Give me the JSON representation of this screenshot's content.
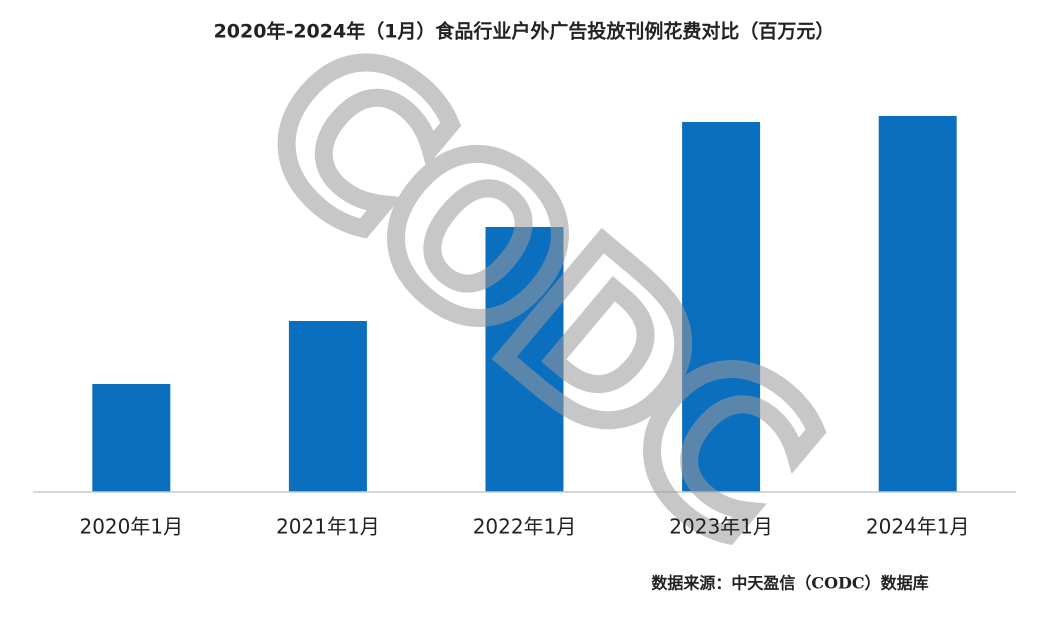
{
  "chart_data": {
    "type": "bar",
    "title": "2020年-2024年（1月）食品行业户外广告投放刊例花费对比（百万元）",
    "categories": [
      "2020年1月",
      "2021年1月",
      "2022年1月",
      "2023年1月",
      "2024年1月"
    ],
    "values": [
      108,
      171,
      265,
      370,
      376
    ],
    "color": "#0b6fbf",
    "watermark": "CODC",
    "source": "数据来源：中天盈信（CODC）数据库"
  }
}
